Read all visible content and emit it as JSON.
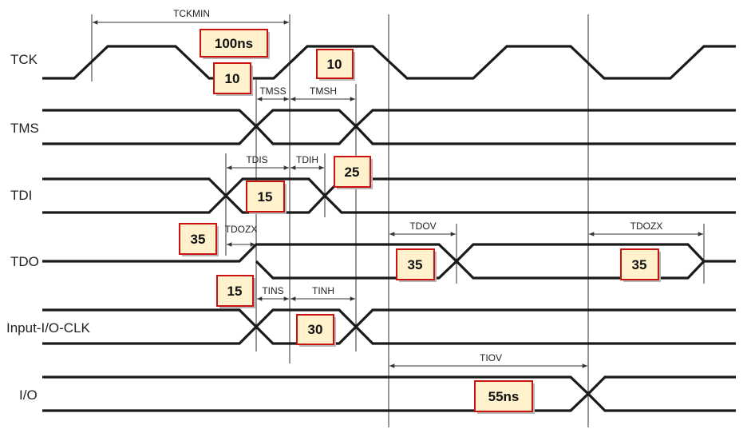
{
  "signals": [
    {
      "id": "tck",
      "label": "TCK"
    },
    {
      "id": "tms",
      "label": "TMS"
    },
    {
      "id": "tdi",
      "label": "TDI"
    },
    {
      "id": "tdo",
      "label": "TDO"
    },
    {
      "id": "input",
      "label": "Input-I/O-CLK"
    },
    {
      "id": "io",
      "label": "I/O"
    }
  ],
  "measurements": {
    "tckmin": "TCKMIN",
    "tmss": "TMSS",
    "tmsh": "TMSH",
    "tdis": "TDIS",
    "tdih": "TDIH",
    "tdozx_1": "TDOZX",
    "tdov": "TDOV",
    "tdozx_2": "TDOZX",
    "tins": "TINS",
    "tinh": "TINH",
    "tiov": "TIOV"
  },
  "callouts": {
    "tckmin_value": "100ns",
    "tck_low": "10",
    "tck_high": "10",
    "tdih_value": "25",
    "tdis_value": "15",
    "tdozx_value": "35",
    "tdov_value": "35",
    "tdozx2_value": "35",
    "tins_value": "15",
    "tinh_value": "30",
    "tiov_value": "55ns"
  },
  "colors": {
    "callout_fill": "#fff2cc",
    "callout_border": "#cc1111",
    "wave": "#1a1a1a"
  }
}
